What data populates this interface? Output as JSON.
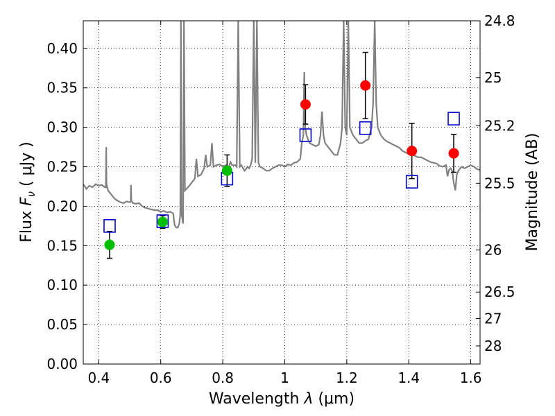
{
  "chart_data": {
    "type": "scatter",
    "xlabel_prefix": "Wavelength",
    "xlabel_symbol": "λ",
    "xlabel_unit": "(μm)",
    "ylabel_prefix": "Flux",
    "ylabel_symbol": "F",
    "ylabel_sub": "ν",
    "ylabel_unit": "( μJy )",
    "y2label": "Magnitude (AB)",
    "xlim": [
      0.35,
      1.63
    ],
    "ylim": [
      0.0,
      0.435
    ],
    "grid": true,
    "x_ticks": [
      {
        "v": 0.4,
        "label": "0.4"
      },
      {
        "v": 0.6,
        "label": "0.6"
      },
      {
        "v": 0.8,
        "label": "0.8"
      },
      {
        "v": 1.0,
        "label": "1"
      },
      {
        "v": 1.2,
        "label": "1.2"
      },
      {
        "v": 1.4,
        "label": "1.4"
      },
      {
        "v": 1.6,
        "label": "1.6"
      }
    ],
    "y_ticks": [
      {
        "v": 0.0,
        "label": "0.00"
      },
      {
        "v": 0.05,
        "label": "0.05"
      },
      {
        "v": 0.1,
        "label": "0.10"
      },
      {
        "v": 0.15,
        "label": "0.15"
      },
      {
        "v": 0.2,
        "label": "0.20"
      },
      {
        "v": 0.25,
        "label": "0.25"
      },
      {
        "v": 0.3,
        "label": "0.30"
      },
      {
        "v": 0.35,
        "label": "0.35"
      },
      {
        "v": 0.4,
        "label": "0.40"
      }
    ],
    "mag_ticks": [
      {
        "mag": 24.8,
        "label": "24.8"
      },
      {
        "mag": 25.0,
        "label": "25"
      },
      {
        "mag": 25.2,
        "label": "25.2"
      },
      {
        "mag": 25.5,
        "label": "25.5"
      },
      {
        "mag": 26.0,
        "label": "26"
      },
      {
        "mag": 26.5,
        "label": "26.5"
      },
      {
        "mag": 27.0,
        "label": "27"
      },
      {
        "mag": 28.0,
        "label": "28"
      }
    ],
    "colors": {
      "spectrum": "#808080",
      "green": "#00bf00",
      "red": "#ff0000",
      "model": "#0000cc",
      "errorbar": "#000000"
    },
    "spectrum": [
      [
        0.35,
        0.228
      ],
      [
        0.36,
        0.222
      ],
      [
        0.37,
        0.226
      ],
      [
        0.38,
        0.224
      ],
      [
        0.39,
        0.228
      ],
      [
        0.4,
        0.226
      ],
      [
        0.41,
        0.227
      ],
      [
        0.42,
        0.224
      ],
      [
        0.423,
        0.224
      ],
      [
        0.424,
        0.275
      ],
      [
        0.425,
        0.228
      ],
      [
        0.43,
        0.22
      ],
      [
        0.44,
        0.215
      ],
      [
        0.45,
        0.21
      ],
      [
        0.46,
        0.207
      ],
      [
        0.47,
        0.205
      ],
      [
        0.48,
        0.204
      ],
      [
        0.49,
        0.206
      ],
      [
        0.5,
        0.205
      ],
      [
        0.503,
        0.206
      ],
      [
        0.504,
        0.227
      ],
      [
        0.505,
        0.207
      ],
      [
        0.51,
        0.204
      ],
      [
        0.52,
        0.203
      ],
      [
        0.53,
        0.204
      ],
      [
        0.54,
        0.2
      ],
      [
        0.55,
        0.198
      ],
      [
        0.56,
        0.197
      ],
      [
        0.57,
        0.196
      ],
      [
        0.58,
        0.195
      ],
      [
        0.59,
        0.195
      ],
      [
        0.6,
        0.193
      ],
      [
        0.61,
        0.194
      ],
      [
        0.62,
        0.192
      ],
      [
        0.63,
        0.193
      ],
      [
        0.64,
        0.191
      ],
      [
        0.645,
        0.176
      ],
      [
        0.65,
        0.173
      ],
      [
        0.655,
        0.173
      ],
      [
        0.66,
        0.178
      ],
      [
        0.663,
        0.19
      ],
      [
        0.665,
        0.435
      ],
      [
        0.667,
        0.19
      ],
      [
        0.672,
        0.178
      ],
      [
        0.675,
        0.435
      ],
      [
        0.678,
        0.22
      ],
      [
        0.69,
        0.225
      ],
      [
        0.7,
        0.23
      ],
      [
        0.71,
        0.235
      ],
      [
        0.715,
        0.26
      ],
      [
        0.72,
        0.238
      ],
      [
        0.73,
        0.24
      ],
      [
        0.74,
        0.248
      ],
      [
        0.745,
        0.265
      ],
      [
        0.75,
        0.25
      ],
      [
        0.76,
        0.252
      ],
      [
        0.765,
        0.28
      ],
      [
        0.77,
        0.25
      ],
      [
        0.78,
        0.252
      ],
      [
        0.79,
        0.253
      ],
      [
        0.8,
        0.25
      ],
      [
        0.81,
        0.252
      ],
      [
        0.815,
        0.246
      ],
      [
        0.82,
        0.25
      ],
      [
        0.825,
        0.256
      ],
      [
        0.83,
        0.252
      ],
      [
        0.84,
        0.252
      ],
      [
        0.845,
        0.25
      ],
      [
        0.85,
        0.435
      ],
      [
        0.855,
        0.25
      ],
      [
        0.86,
        0.252
      ],
      [
        0.87,
        0.245
      ],
      [
        0.875,
        0.247
      ],
      [
        0.88,
        0.25
      ],
      [
        0.885,
        0.248
      ],
      [
        0.89,
        0.252
      ],
      [
        0.895,
        0.26
      ],
      [
        0.9,
        0.435
      ],
      [
        0.905,
        0.255
      ],
      [
        0.91,
        0.435
      ],
      [
        0.915,
        0.255
      ],
      [
        0.92,
        0.25
      ],
      [
        0.93,
        0.248
      ],
      [
        0.94,
        0.245
      ],
      [
        0.95,
        0.245
      ],
      [
        0.96,
        0.248
      ],
      [
        0.97,
        0.25
      ],
      [
        0.98,
        0.252
      ],
      [
        0.99,
        0.252
      ],
      [
        1.0,
        0.25
      ],
      [
        1.01,
        0.253
      ],
      [
        1.02,
        0.252
      ],
      [
        1.03,
        0.255
      ],
      [
        1.04,
        0.256
      ],
      [
        1.05,
        0.26
      ],
      [
        1.055,
        0.28
      ],
      [
        1.06,
        0.29
      ],
      [
        1.063,
        0.37
      ],
      [
        1.066,
        0.3
      ],
      [
        1.07,
        0.29
      ],
      [
        1.08,
        0.28
      ],
      [
        1.09,
        0.278
      ],
      [
        1.1,
        0.276
      ],
      [
        1.11,
        0.278
      ],
      [
        1.115,
        0.29
      ],
      [
        1.12,
        0.32
      ],
      [
        1.125,
        0.29
      ],
      [
        1.13,
        0.28
      ],
      [
        1.14,
        0.275
      ],
      [
        1.15,
        0.27
      ],
      [
        1.16,
        0.265
      ],
      [
        1.17,
        0.265
      ],
      [
        1.18,
        0.28
      ],
      [
        1.185,
        0.3
      ],
      [
        1.19,
        0.435
      ],
      [
        1.195,
        0.3
      ],
      [
        1.2,
        0.29
      ],
      [
        1.205,
        0.435
      ],
      [
        1.21,
        0.3
      ],
      [
        1.22,
        0.29
      ],
      [
        1.23,
        0.285
      ],
      [
        1.24,
        0.28
      ],
      [
        1.25,
        0.28
      ],
      [
        1.26,
        0.283
      ],
      [
        1.27,
        0.285
      ],
      [
        1.28,
        0.3
      ],
      [
        1.285,
        0.33
      ],
      [
        1.29,
        0.435
      ],
      [
        1.295,
        0.33
      ],
      [
        1.3,
        0.3
      ],
      [
        1.31,
        0.29
      ],
      [
        1.32,
        0.285
      ],
      [
        1.33,
        0.282
      ],
      [
        1.34,
        0.28
      ],
      [
        1.35,
        0.278
      ],
      [
        1.36,
        0.276
      ],
      [
        1.37,
        0.274
      ],
      [
        1.38,
        0.27
      ],
      [
        1.39,
        0.268
      ],
      [
        1.4,
        0.266
      ],
      [
        1.41,
        0.265
      ],
      [
        1.42,
        0.264
      ],
      [
        1.43,
        0.262
      ],
      [
        1.44,
        0.262
      ],
      [
        1.45,
        0.26
      ],
      [
        1.46,
        0.258
      ],
      [
        1.47,
        0.256
      ],
      [
        1.48,
        0.255
      ],
      [
        1.49,
        0.254
      ],
      [
        1.5,
        0.251
      ],
      [
        1.51,
        0.25
      ],
      [
        1.52,
        0.252
      ],
      [
        1.525,
        0.238
      ],
      [
        1.53,
        0.246
      ],
      [
        1.535,
        0.248
      ],
      [
        1.54,
        0.245
      ],
      [
        1.545,
        0.23
      ],
      [
        1.55,
        0.22
      ],
      [
        1.555,
        0.24
      ],
      [
        1.56,
        0.245
      ],
      [
        1.57,
        0.25
      ],
      [
        1.58,
        0.248
      ],
      [
        1.59,
        0.25
      ],
      [
        1.6,
        0.252
      ],
      [
        1.61,
        0.25
      ],
      [
        1.62,
        0.247
      ],
      [
        1.63,
        0.246
      ]
    ],
    "observed_optical": [
      {
        "x": 0.435,
        "y": 0.151,
        "yerr_lo": 0.017,
        "yerr_hi": 0.017
      },
      {
        "x": 0.606,
        "y": 0.18,
        "yerr_lo": 0.008,
        "yerr_hi": 0.008
      },
      {
        "x": 0.814,
        "y": 0.245,
        "yerr_lo": 0.02,
        "yerr_hi": 0.02
      }
    ],
    "observed_nir": [
      {
        "x": 1.067,
        "y": 0.329,
        "yerr_lo": 0.025,
        "yerr_hi": 0.025
      },
      {
        "x": 1.26,
        "y": 0.353,
        "yerr_lo": 0.042,
        "yerr_hi": 0.042
      },
      {
        "x": 1.41,
        "y": 0.27,
        "yerr_lo": 0.035,
        "yerr_hi": 0.035
      },
      {
        "x": 1.545,
        "y": 0.267,
        "yerr_lo": 0.024,
        "yerr_hi": 0.024
      }
    ],
    "model_points": [
      {
        "x": 0.435,
        "y": 0.175
      },
      {
        "x": 0.606,
        "y": 0.181
      },
      {
        "x": 0.814,
        "y": 0.235
      },
      {
        "x": 1.067,
        "y": 0.29
      },
      {
        "x": 1.26,
        "y": 0.299
      },
      {
        "x": 1.41,
        "y": 0.231
      },
      {
        "x": 1.545,
        "y": 0.311
      }
    ]
  }
}
